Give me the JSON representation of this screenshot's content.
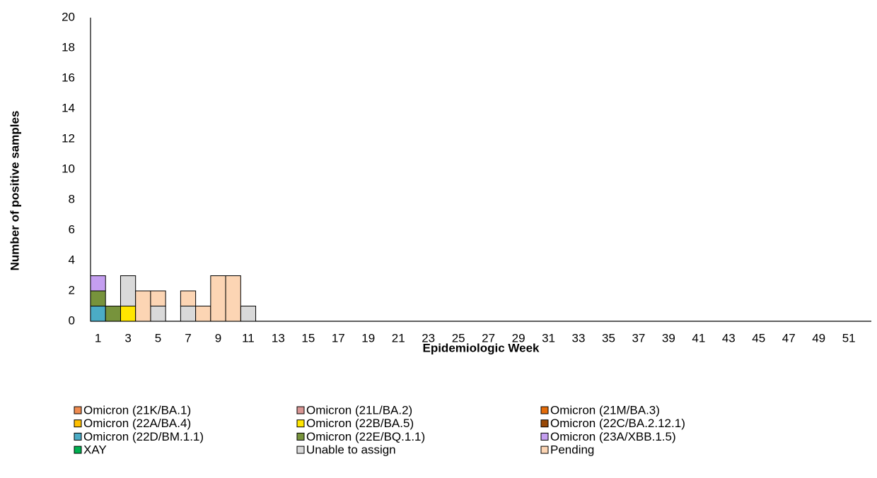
{
  "chart_data": {
    "type": "stacked_bar",
    "x_label": "Epidemiologic Week",
    "y_label": "Number of positive samples",
    "categories": [
      1,
      null,
      3,
      null,
      5,
      null,
      7,
      null,
      9,
      null,
      11,
      null,
      13,
      null,
      15,
      null,
      17,
      null,
      19,
      null,
      21,
      null,
      23,
      null,
      25,
      null,
      27,
      null,
      29,
      null,
      31,
      null,
      33,
      null,
      35,
      null,
      37,
      null,
      39,
      null,
      41,
      null,
      43,
      null,
      45,
      null,
      47,
      null,
      49,
      null,
      51,
      null
    ],
    "ylim": [
      0,
      20
    ],
    "yticks": [
      0,
      2,
      4,
      6,
      8,
      10,
      12,
      14,
      16,
      18,
      20
    ],
    "grid": false,
    "legend": "bottom",
    "series": [
      {
        "name": "Omicron (21K/BA.1)",
        "color": "#f08c50",
        "values": [
          0,
          0,
          0,
          0,
          0,
          0,
          0,
          0,
          0,
          0,
          0,
          0,
          0,
          0,
          0,
          0,
          0,
          0,
          0,
          0,
          0,
          0,
          0,
          0,
          0,
          0,
          0,
          0,
          0,
          0,
          0,
          0,
          0,
          0,
          0,
          0,
          0,
          0,
          0,
          0,
          0,
          0,
          0,
          0,
          0,
          0,
          0,
          0,
          0,
          0,
          0,
          0
        ]
      },
      {
        "name": "Omicron (21L/BA.2)",
        "color": "#d99694",
        "values": [
          0,
          0,
          0,
          0,
          0,
          0,
          0,
          0,
          0,
          0,
          0,
          0,
          0,
          0,
          0,
          0,
          0,
          0,
          0,
          0,
          0,
          0,
          0,
          0,
          0,
          0,
          0,
          0,
          0,
          0,
          0,
          0,
          0,
          0,
          0,
          0,
          0,
          0,
          0,
          0,
          0,
          0,
          0,
          0,
          0,
          0,
          0,
          0,
          0,
          0,
          0,
          0
        ]
      },
      {
        "name": "Omicron (21M/BA.3)",
        "color": "#e46c0a",
        "values": [
          0,
          0,
          0,
          0,
          0,
          0,
          0,
          0,
          0,
          0,
          0,
          0,
          0,
          0,
          0,
          0,
          0,
          0,
          0,
          0,
          0,
          0,
          0,
          0,
          0,
          0,
          0,
          0,
          0,
          0,
          0,
          0,
          0,
          0,
          0,
          0,
          0,
          0,
          0,
          0,
          0,
          0,
          0,
          0,
          0,
          0,
          0,
          0,
          0,
          0,
          0,
          0
        ]
      },
      {
        "name": "Omicron (22A/BA.4)",
        "color": "#ffc000",
        "values": [
          0,
          0,
          0,
          0,
          0,
          0,
          0,
          0,
          0,
          0,
          0,
          0,
          0,
          0,
          0,
          0,
          0,
          0,
          0,
          0,
          0,
          0,
          0,
          0,
          0,
          0,
          0,
          0,
          0,
          0,
          0,
          0,
          0,
          0,
          0,
          0,
          0,
          0,
          0,
          0,
          0,
          0,
          0,
          0,
          0,
          0,
          0,
          0,
          0,
          0,
          0,
          0
        ]
      },
      {
        "name": "Omicron (22B/BA.5)",
        "color": "#ffe600",
        "values": [
          0,
          0,
          1,
          0,
          0,
          0,
          0,
          0,
          0,
          0,
          0,
          0,
          0,
          0,
          0,
          0,
          0,
          0,
          0,
          0,
          0,
          0,
          0,
          0,
          0,
          0,
          0,
          0,
          0,
          0,
          0,
          0,
          0,
          0,
          0,
          0,
          0,
          0,
          0,
          0,
          0,
          0,
          0,
          0,
          0,
          0,
          0,
          0,
          0,
          0,
          0,
          0
        ]
      },
      {
        "name": "Omicron (22C/BA.2.12.1)",
        "color": "#984807",
        "values": [
          0,
          0,
          0,
          0,
          0,
          0,
          0,
          0,
          0,
          0,
          0,
          0,
          0,
          0,
          0,
          0,
          0,
          0,
          0,
          0,
          0,
          0,
          0,
          0,
          0,
          0,
          0,
          0,
          0,
          0,
          0,
          0,
          0,
          0,
          0,
          0,
          0,
          0,
          0,
          0,
          0,
          0,
          0,
          0,
          0,
          0,
          0,
          0,
          0,
          0,
          0,
          0
        ]
      },
      {
        "name": "Omicron (22D/BM.1.1)",
        "color": "#4bacc6",
        "values": [
          1,
          0,
          0,
          0,
          0,
          0,
          0,
          0,
          0,
          0,
          0,
          0,
          0,
          0,
          0,
          0,
          0,
          0,
          0,
          0,
          0,
          0,
          0,
          0,
          0,
          0,
          0,
          0,
          0,
          0,
          0,
          0,
          0,
          0,
          0,
          0,
          0,
          0,
          0,
          0,
          0,
          0,
          0,
          0,
          0,
          0,
          0,
          0,
          0,
          0,
          0,
          0
        ]
      },
      {
        "name": "Omicron (22E/BQ.1.1)",
        "color": "#77933c",
        "values": [
          1,
          1,
          0,
          0,
          0,
          0,
          0,
          0,
          0,
          0,
          0,
          0,
          0,
          0,
          0,
          0,
          0,
          0,
          0,
          0,
          0,
          0,
          0,
          0,
          0,
          0,
          0,
          0,
          0,
          0,
          0,
          0,
          0,
          0,
          0,
          0,
          0,
          0,
          0,
          0,
          0,
          0,
          0,
          0,
          0,
          0,
          0,
          0,
          0,
          0,
          0,
          0
        ]
      },
      {
        "name": "Omicron (23A/XBB.1.5)",
        "color": "#c49ef0",
        "values": [
          1,
          0,
          0,
          0,
          0,
          0,
          0,
          0,
          0,
          0,
          0,
          0,
          0,
          0,
          0,
          0,
          0,
          0,
          0,
          0,
          0,
          0,
          0,
          0,
          0,
          0,
          0,
          0,
          0,
          0,
          0,
          0,
          0,
          0,
          0,
          0,
          0,
          0,
          0,
          0,
          0,
          0,
          0,
          0,
          0,
          0,
          0,
          0,
          0,
          0,
          0,
          0
        ]
      },
      {
        "name": "XAY",
        "color": "#00b050",
        "values": [
          0,
          0,
          0,
          0,
          0,
          0,
          0,
          0,
          0,
          0,
          0,
          0,
          0,
          0,
          0,
          0,
          0,
          0,
          0,
          0,
          0,
          0,
          0,
          0,
          0,
          0,
          0,
          0,
          0,
          0,
          0,
          0,
          0,
          0,
          0,
          0,
          0,
          0,
          0,
          0,
          0,
          0,
          0,
          0,
          0,
          0,
          0,
          0,
          0,
          0,
          0,
          0
        ]
      },
      {
        "name": "Unable to assign",
        "color": "#d9d9d9",
        "values": [
          0,
          0,
          2,
          0,
          1,
          0,
          1,
          0,
          0,
          0,
          1,
          0,
          0,
          0,
          0,
          0,
          0,
          0,
          0,
          0,
          0,
          0,
          0,
          0,
          0,
          0,
          0,
          0,
          0,
          0,
          0,
          0,
          0,
          0,
          0,
          0,
          0,
          0,
          0,
          0,
          0,
          0,
          0,
          0,
          0,
          0,
          0,
          0,
          0,
          0,
          0,
          0
        ]
      },
      {
        "name": "Pending",
        "color": "#fcd5b4",
        "values": [
          0,
          0,
          0,
          2,
          1,
          0,
          1,
          1,
          3,
          3,
          0,
          0,
          0,
          0,
          0,
          0,
          0,
          0,
          0,
          0,
          0,
          0,
          0,
          0,
          0,
          0,
          0,
          0,
          0,
          0,
          0,
          0,
          0,
          0,
          0,
          0,
          0,
          0,
          0,
          0,
          0,
          0,
          0,
          0,
          0,
          0,
          0,
          0,
          0,
          0,
          0,
          0
        ]
      }
    ]
  }
}
